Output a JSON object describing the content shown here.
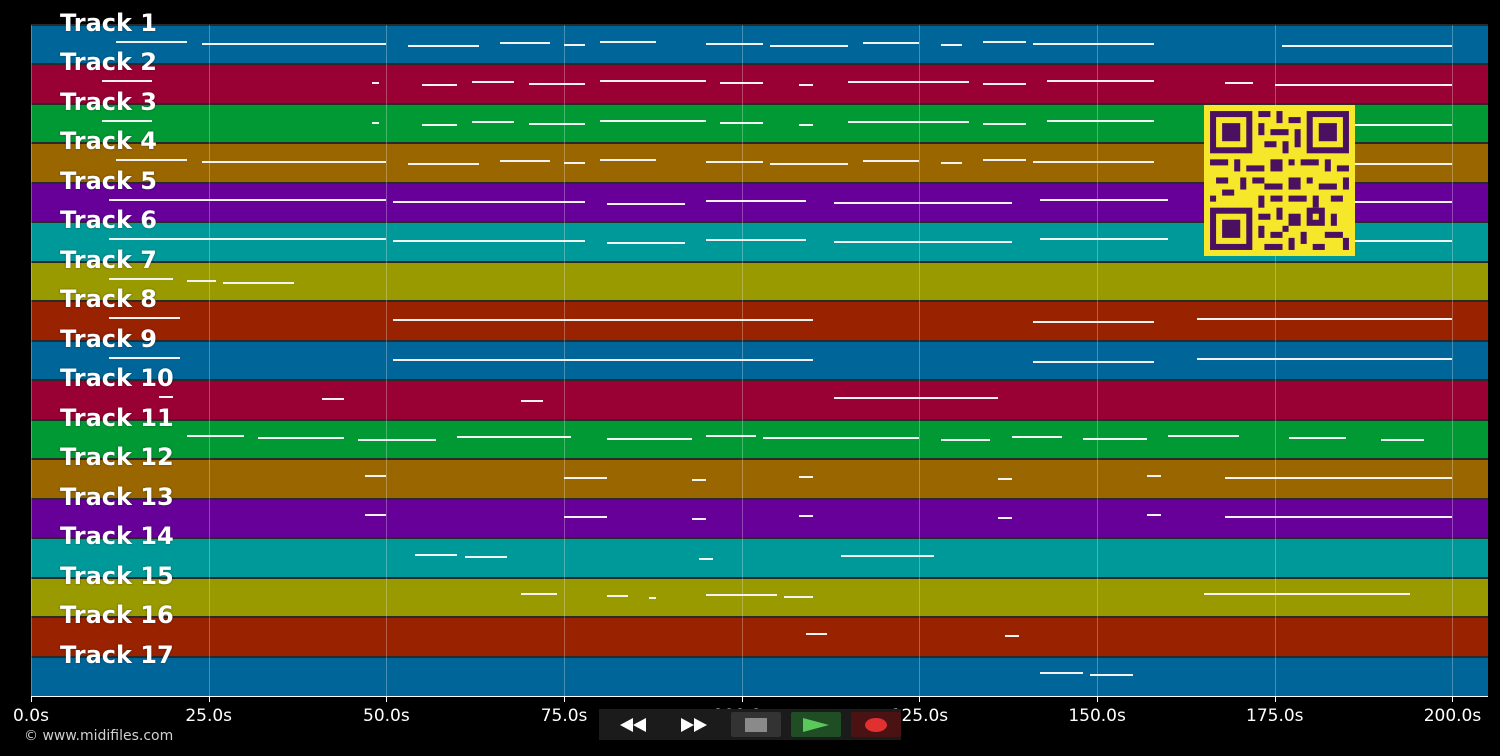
{
  "tracks": [
    {
      "label": "Track 1",
      "color": "#006699",
      "notes": [
        [
          12,
          22
        ],
        [
          24,
          50
        ],
        [
          53,
          63
        ],
        [
          66,
          73
        ],
        [
          75,
          78
        ],
        [
          80,
          88
        ],
        [
          95,
          103
        ],
        [
          104,
          115
        ],
        [
          117,
          125
        ],
        [
          128,
          131
        ],
        [
          134,
          140
        ],
        [
          141,
          158
        ],
        [
          176,
          200
        ]
      ]
    },
    {
      "label": "Track 2",
      "color": "#990033",
      "notes": [
        [
          10,
          17
        ],
        [
          48,
          49
        ],
        [
          55,
          60
        ],
        [
          62,
          68
        ],
        [
          70,
          78
        ],
        [
          80,
          95
        ],
        [
          97,
          103
        ],
        [
          108,
          110
        ],
        [
          115,
          132
        ],
        [
          134,
          140
        ],
        [
          143,
          158
        ],
        [
          168,
          172
        ],
        [
          175,
          200
        ]
      ]
    },
    {
      "label": "Track 3",
      "color": "#009933",
      "notes": [
        [
          10,
          17
        ],
        [
          48,
          49
        ],
        [
          55,
          60
        ],
        [
          62,
          68
        ],
        [
          70,
          78
        ],
        [
          80,
          95
        ],
        [
          97,
          103
        ],
        [
          108,
          110
        ],
        [
          115,
          132
        ],
        [
          134,
          140
        ],
        [
          143,
          158
        ],
        [
          168,
          172
        ],
        [
          175,
          200
        ]
      ]
    },
    {
      "label": "Track 4",
      "color": "#996600",
      "notes": [
        [
          12,
          22
        ],
        [
          24,
          50
        ],
        [
          53,
          63
        ],
        [
          66,
          73
        ],
        [
          75,
          78
        ],
        [
          80,
          88
        ],
        [
          95,
          103
        ],
        [
          104,
          115
        ],
        [
          117,
          125
        ],
        [
          128,
          131
        ],
        [
          134,
          140
        ],
        [
          141,
          158
        ],
        [
          176,
          200
        ]
      ]
    },
    {
      "label": "Track 5",
      "color": "#660099",
      "notes": [
        [
          11,
          50
        ],
        [
          51,
          78
        ],
        [
          81,
          92
        ],
        [
          95,
          109
        ],
        [
          113,
          138
        ],
        [
          142,
          160
        ],
        [
          165,
          200
        ]
      ]
    },
    {
      "label": "Track 6",
      "color": "#009999",
      "notes": [
        [
          11,
          50
        ],
        [
          51,
          78
        ],
        [
          81,
          92
        ],
        [
          95,
          109
        ],
        [
          113,
          138
        ],
        [
          142,
          160
        ],
        [
          165,
          200
        ]
      ]
    },
    {
      "label": "Track 7",
      "color": "#999900",
      "notes": [
        [
          11,
          20
        ],
        [
          22,
          26
        ],
        [
          27,
          37
        ]
      ]
    },
    {
      "label": "Track 8",
      "color": "#992200",
      "notes": [
        [
          11,
          21
        ],
        [
          51,
          110
        ],
        [
          141,
          158
        ],
        [
          164,
          200
        ]
      ]
    },
    {
      "label": "Track 9",
      "color": "#006699",
      "notes": [
        [
          11,
          21
        ],
        [
          51,
          110
        ],
        [
          141,
          158
        ],
        [
          164,
          200
        ]
      ]
    },
    {
      "label": "Track 10",
      "color": "#990033",
      "notes": [
        [
          18,
          20
        ],
        [
          41,
          44
        ],
        [
          69,
          72
        ],
        [
          113,
          136
        ]
      ]
    },
    {
      "label": "Track 11",
      "color": "#009933",
      "notes": [
        [
          22,
          30
        ],
        [
          32,
          44
        ],
        [
          46,
          57
        ],
        [
          60,
          76
        ],
        [
          81,
          93
        ],
        [
          95,
          102
        ],
        [
          103,
          125
        ],
        [
          128,
          135
        ],
        [
          138,
          145
        ],
        [
          148,
          157
        ],
        [
          160,
          170
        ],
        [
          177,
          185
        ],
        [
          190,
          196
        ]
      ]
    },
    {
      "label": "Track 12",
      "color": "#996600",
      "notes": [
        [
          47,
          50
        ],
        [
          75,
          81
        ],
        [
          93,
          95
        ],
        [
          108,
          110
        ],
        [
          136,
          138
        ],
        [
          157,
          159
        ],
        [
          168,
          200
        ]
      ]
    },
    {
      "label": "Track 13",
      "color": "#660099",
      "notes": [
        [
          47,
          50
        ],
        [
          75,
          81
        ],
        [
          93,
          95
        ],
        [
          108,
          110
        ],
        [
          136,
          138
        ],
        [
          157,
          159
        ],
        [
          168,
          200
        ]
      ]
    },
    {
      "label": "Track 14",
      "color": "#009999",
      "notes": [
        [
          54,
          60
        ],
        [
          61,
          67
        ],
        [
          94,
          96
        ],
        [
          114,
          127
        ]
      ]
    },
    {
      "label": "Track 15",
      "color": "#999900",
      "notes": [
        [
          69,
          74
        ],
        [
          81,
          84
        ],
        [
          87,
          88
        ],
        [
          95,
          105
        ],
        [
          106,
          110
        ],
        [
          165,
          194
        ]
      ]
    },
    {
      "label": "Track 16",
      "color": "#992200",
      "notes": [
        [
          109,
          112
        ],
        [
          137,
          139
        ]
      ]
    },
    {
      "label": "Track 17",
      "color": "#006699",
      "notes": [
        [
          142,
          148
        ],
        [
          149,
          155
        ]
      ]
    }
  ],
  "axis": {
    "range_seconds": [
      0,
      205
    ],
    "ticks": [
      {
        "value": 0,
        "label": "0.0s"
      },
      {
        "value": 25,
        "label": "25.0s"
      },
      {
        "value": 50,
        "label": "50.0s"
      },
      {
        "value": 75,
        "label": "75.0s"
      },
      {
        "value": 100,
        "label": "100.0s"
      },
      {
        "value": 125,
        "label": "125.0s"
      },
      {
        "value": 150,
        "label": "150.0s"
      },
      {
        "value": 175,
        "label": "175.0s"
      },
      {
        "value": 200,
        "label": "200.0s"
      }
    ]
  },
  "copyright": "© www.midifiles.com",
  "transport": {
    "buttons": [
      {
        "name": "rewind-button",
        "icon": "rewind-icon",
        "color": "#0d0d0d"
      },
      {
        "name": "fast-forward-button",
        "icon": "fast-forward-icon",
        "color": "#0d0d0d"
      },
      {
        "name": "stop-button",
        "icon": "stop-icon",
        "color": "#333333"
      },
      {
        "name": "play-button",
        "icon": "play-icon",
        "color": "#1f4d24"
      },
      {
        "name": "record-button",
        "icon": "record-icon",
        "color": "#4a1212"
      }
    ],
    "colors": {
      "play": "#5ac85a",
      "record": "#e03030",
      "stop": "#8a8a8a",
      "arrows": "#ffffff"
    }
  },
  "qr_code": {
    "icon": "qr-code-icon",
    "foreground": "#4b1060",
    "background": "#f7e72a"
  }
}
